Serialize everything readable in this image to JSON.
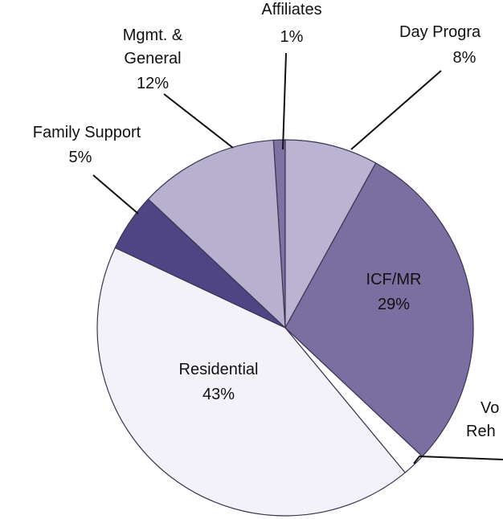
{
  "chart_data": {
    "type": "pie",
    "categories": [
      "Affiliates",
      "Day Progra",
      "ICF/MR",
      "Vo Reh",
      "Residential",
      "Family Support",
      "Mgmt. & General"
    ],
    "values": [
      1,
      8,
      29,
      2,
      43,
      5,
      12
    ],
    "value_labels": [
      "1%",
      "8%",
      "29%",
      null,
      "43%",
      "5%",
      "12%"
    ],
    "colors": [
      "#7d73a3",
      "#bab4d2",
      "#7a6fa0",
      "#ffffff",
      "#f3f2f8",
      "#4f4585",
      "#b7b1cf"
    ]
  }
}
